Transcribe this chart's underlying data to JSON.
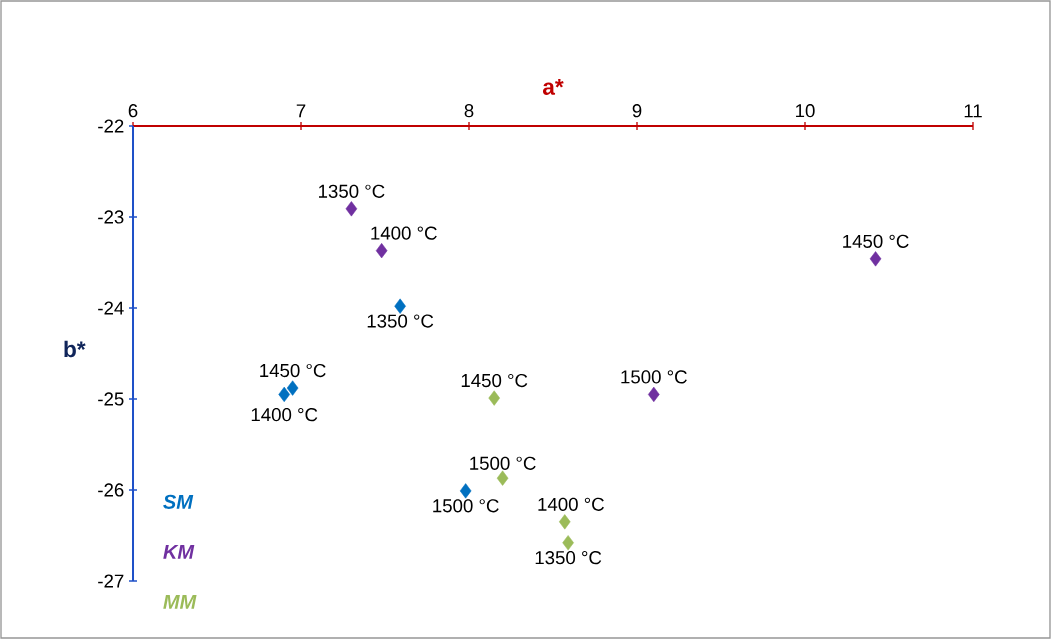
{
  "chart_data": {
    "type": "scatter",
    "xlabel": "a*",
    "ylabel": "b*",
    "xlim": [
      6,
      11
    ],
    "xticks": [
      6,
      7,
      8,
      9,
      10,
      11
    ],
    "ylim": [
      -27,
      -22
    ],
    "yticks": [
      -27,
      -26,
      -25,
      -24,
      -23,
      -22
    ],
    "marker": "diamond",
    "legend": "bottom left",
    "series": [
      {
        "name": "SM",
        "color": "#0070c0",
        "x": [
          7.59,
          6.9,
          6.95,
          7.98
        ],
        "values": [
          -23.98,
          -24.95,
          -24.88,
          -26.01
        ]
      },
      {
        "name": "KM",
        "color": "#7030a0",
        "x": [
          7.3,
          7.48,
          10.42,
          9.1
        ],
        "values": [
          -22.91,
          -23.37,
          -23.46,
          -24.95
        ]
      },
      {
        "name": "MM",
        "color": "#9bbb59",
        "x": [
          8.59,
          8.57,
          8.15,
          8.2
        ],
        "values": [
          -26.58,
          -26.35,
          -24.99,
          -25.87
        ]
      }
    ],
    "annotations": [
      {
        "text": "1350 °C",
        "x": 7.59,
        "y": -23.98
      },
      {
        "text": "1400 °C",
        "x": 6.9,
        "y": -24.95
      },
      {
        "text": "1450 °C",
        "x": 6.95,
        "y": -24.88
      },
      {
        "text": "1500 °C",
        "x": 7.98,
        "y": -26.01
      },
      {
        "text": "1350 °C",
        "x": 7.3,
        "y": -22.91
      },
      {
        "text": "1400 °C",
        "x": 7.48,
        "y": -23.37
      },
      {
        "text": "1450 °C",
        "x": 10.42,
        "y": -23.46
      },
      {
        "text": "1500 °C",
        "x": 9.1,
        "y": -24.95
      },
      {
        "text": "1350 °C",
        "x": 8.59,
        "y": -26.58
      },
      {
        "text": "1400 °C",
        "x": 8.57,
        "y": -26.35
      },
      {
        "text": "1450 °C",
        "x": 8.15,
        "y": -24.99
      },
      {
        "text": "1500 °C",
        "x": 8.2,
        "y": -25.87
      }
    ]
  }
}
